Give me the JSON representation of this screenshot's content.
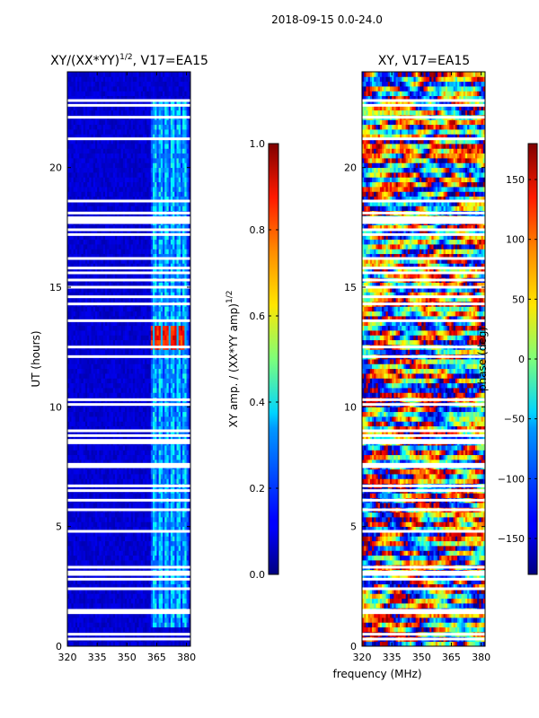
{
  "chart_data": {
    "type": "heatmap",
    "suptitle": "2018-09-15 0.0-24.0",
    "shared_xlabel": "frequency (MHz)",
    "shared_ylabel": "UT (hours)",
    "xlim": [
      320,
      382
    ],
    "ylim": [
      0,
      24
    ],
    "xticks": [
      320,
      335,
      350,
      365,
      380
    ],
    "yticks": [
      0,
      5,
      10,
      15,
      20
    ],
    "colormap": "jet",
    "flagged_ut_hours": [
      0.3,
      0.5,
      1.4,
      1.5,
      2.4,
      2.8,
      3.0,
      3.1,
      3.3,
      4.8,
      5.7,
      6.1,
      6.5,
      6.7,
      7.5,
      7.6,
      8.5,
      8.6,
      8.8,
      9.0,
      10.1,
      10.3,
      12.1,
      12.5,
      13.6,
      14.3,
      14.6,
      15.0,
      15.3,
      15.6,
      15.8,
      16.2,
      17.2,
      17.4,
      17.7,
      17.8,
      17.9,
      18.1,
      18.6,
      21.2,
      22.1,
      22.6,
      22.8
    ],
    "panels": [
      {
        "id": "amplitude",
        "title": "XY/(XX*YY)",
        "title_exponent": "1/2",
        "title_suffix": ", V17=EA15",
        "colorbar": {
          "label": "XY amp. / (XX*YY amp)",
          "label_exponent": "1/2",
          "range": [
            0.0,
            1.0
          ],
          "ticks": [
            "0.0",
            "0.2",
            "0.4",
            "0.6",
            "0.8",
            "1.0"
          ],
          "tick_values": [
            0.0,
            0.2,
            0.4,
            0.6,
            0.8,
            1.0
          ]
        },
        "background_value": 0.05,
        "features": [
          {
            "name": "rfi-band",
            "freq_range": [
              362,
              381
            ],
            "ut_range": [
              0.8,
              22.8
            ],
            "value": 0.35
          },
          {
            "name": "high-amplitude-burst",
            "freq_range": [
              362,
              380
            ],
            "ut_range": [
              12.4,
              13.4
            ],
            "value": 0.9
          }
        ]
      },
      {
        "id": "phase",
        "title": "XY",
        "title_suffix": ", V17=EA15",
        "colorbar": {
          "label": "phase (deg)",
          "range": [
            -180,
            180
          ],
          "ticks": [
            "−150",
            "−100",
            "−50",
            "0",
            "50",
            "100",
            "150"
          ],
          "tick_values": [
            -150,
            -100,
            -50,
            0,
            50,
            100,
            150
          ]
        },
        "features": [
          {
            "name": "phase-noise",
            "freq_range": [
              320,
              382
            ],
            "ut_range": [
              0,
              24
            ],
            "value_range": [
              -180,
              180
            ]
          }
        ]
      }
    ]
  }
}
